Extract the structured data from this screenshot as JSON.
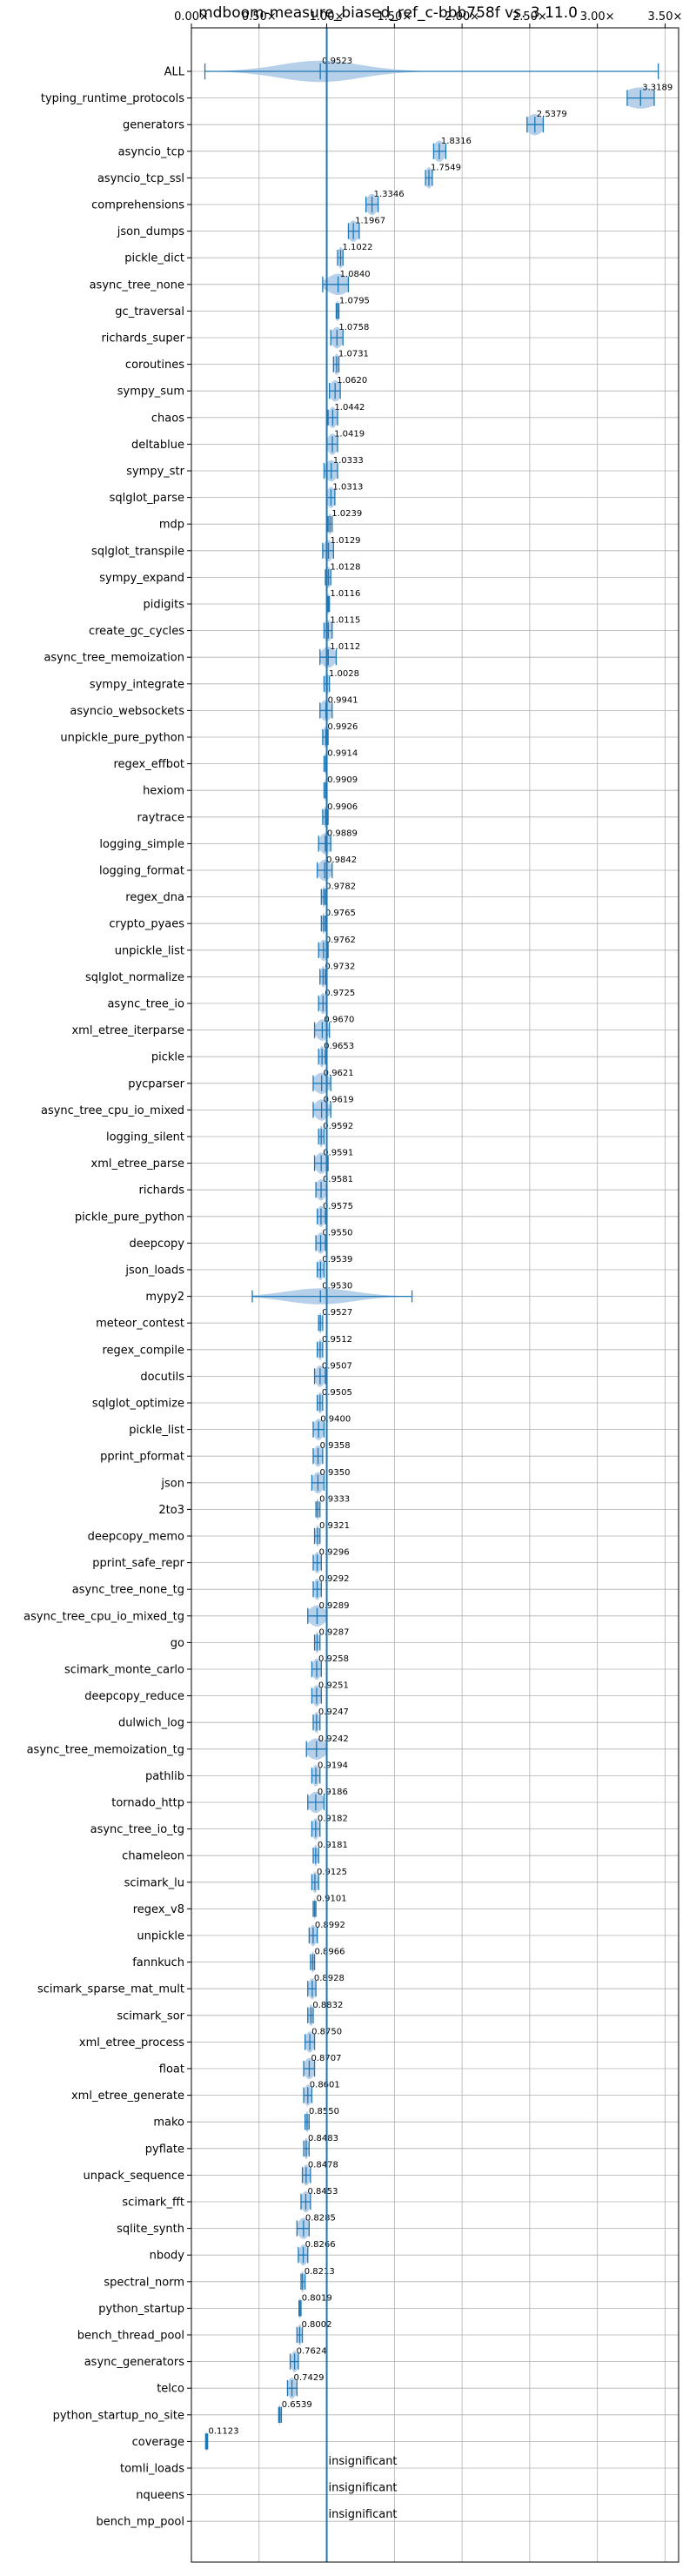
{
  "chart_data": {
    "type": "violin",
    "title": "mdboom-measure_biased_ref_c-bbb758f vs. 3.11.0",
    "xlim": [
      0,
      3.6
    ],
    "x_ticks": [
      {
        "value": 0.0,
        "label": "0.00×"
      },
      {
        "value": 0.5,
        "label": "0.50×"
      },
      {
        "value": 1.0,
        "label": "1.00×"
      },
      {
        "value": 1.5,
        "label": "1.50×"
      },
      {
        "value": 2.0,
        "label": "2.00×"
      },
      {
        "value": 2.5,
        "label": "2.50×"
      },
      {
        "value": 3.0,
        "label": "3.00×"
      },
      {
        "value": 3.5,
        "label": "3.50×"
      }
    ],
    "reference_line": 1.0,
    "grid": true,
    "accent_color": "#1f77b4",
    "fill_color": "#a9c8e6",
    "insignificant_text": "insignificant",
    "rows": [
      {
        "name": "ALL",
        "value": 0.9523,
        "label": "0.9523",
        "min": 0.1,
        "max": 3.45,
        "spread": 0.3,
        "height": 0.8
      },
      {
        "name": "typing_runtime_protocols",
        "value": 3.3189,
        "label": "3.3189",
        "min": 3.22,
        "max": 3.42,
        "spread": 0.12,
        "height": 0.8
      },
      {
        "name": "generators",
        "value": 2.5379,
        "label": "2.5379",
        "min": 2.48,
        "max": 2.6,
        "spread": 0.06,
        "height": 0.8
      },
      {
        "name": "asyncio_tcp",
        "value": 1.8316,
        "label": "1.8316",
        "min": 1.79,
        "max": 1.88,
        "spread": 0.04,
        "height": 0.8
      },
      {
        "name": "asyncio_tcp_ssl",
        "value": 1.7549,
        "label": "1.7549",
        "min": 1.73,
        "max": 1.78,
        "spread": 0.025,
        "height": 0.8
      },
      {
        "name": "comprehensions",
        "value": 1.3346,
        "label": "1.3346",
        "min": 1.29,
        "max": 1.38,
        "spread": 0.04,
        "height": 0.8
      },
      {
        "name": "json_dumps",
        "value": 1.1967,
        "label": "1.1967",
        "min": 1.16,
        "max": 1.24,
        "spread": 0.04,
        "height": 0.8
      },
      {
        "name": "pickle_dict",
        "value": 1.1022,
        "label": "1.1022",
        "min": 1.08,
        "max": 1.12,
        "spread": 0.02,
        "height": 0.8
      },
      {
        "name": "async_tree_none",
        "value": 1.084,
        "label": "1.0840",
        "min": 0.97,
        "max": 1.16,
        "spread": 0.08,
        "height": 0.8
      },
      {
        "name": "gc_traversal",
        "value": 1.0795,
        "label": "1.0795",
        "min": 1.07,
        "max": 1.09,
        "spread": 0.01,
        "height": 0.8
      },
      {
        "name": "richards_super",
        "value": 1.0758,
        "label": "1.0758",
        "min": 1.03,
        "max": 1.12,
        "spread": 0.04,
        "height": 0.8
      },
      {
        "name": "coroutines",
        "value": 1.0731,
        "label": "1.0731",
        "min": 1.05,
        "max": 1.09,
        "spread": 0.02,
        "height": 0.8
      },
      {
        "name": "sympy_sum",
        "value": 1.062,
        "label": "1.0620",
        "min": 1.02,
        "max": 1.1,
        "spread": 0.04,
        "height": 0.8
      },
      {
        "name": "chaos",
        "value": 1.0442,
        "label": "1.0442",
        "min": 1.01,
        "max": 1.08,
        "spread": 0.03,
        "height": 0.8
      },
      {
        "name": "deltablue",
        "value": 1.0419,
        "label": "1.0419",
        "min": 1.0,
        "max": 1.08,
        "spread": 0.035,
        "height": 0.8
      },
      {
        "name": "sympy_str",
        "value": 1.0333,
        "label": "1.0333",
        "min": 0.98,
        "max": 1.08,
        "spread": 0.045,
        "height": 0.8
      },
      {
        "name": "sqlglot_parse",
        "value": 1.0313,
        "label": "1.0313",
        "min": 1.0,
        "max": 1.06,
        "spread": 0.03,
        "height": 0.8
      },
      {
        "name": "mdp",
        "value": 1.0239,
        "label": "1.0239",
        "min": 1.01,
        "max": 1.04,
        "spread": 0.015,
        "height": 0.8
      },
      {
        "name": "sqlglot_transpile",
        "value": 1.0129,
        "label": "1.0129",
        "min": 0.97,
        "max": 1.05,
        "spread": 0.035,
        "height": 0.8
      },
      {
        "name": "sympy_expand",
        "value": 1.0128,
        "label": "1.0128",
        "min": 0.99,
        "max": 1.03,
        "spread": 0.02,
        "height": 0.8
      },
      {
        "name": "pidigits",
        "value": 1.0116,
        "label": "1.0116",
        "min": 1.005,
        "max": 1.02,
        "spread": 0.008,
        "height": 0.8
      },
      {
        "name": "create_gc_cycles",
        "value": 1.0115,
        "label": "1.0115",
        "min": 0.98,
        "max": 1.04,
        "spread": 0.03,
        "height": 0.8
      },
      {
        "name": "async_tree_memoization",
        "value": 1.0112,
        "label": "1.0112",
        "min": 0.95,
        "max": 1.07,
        "spread": 0.05,
        "height": 0.8
      },
      {
        "name": "sympy_integrate",
        "value": 1.0028,
        "label": "1.0028",
        "min": 0.98,
        "max": 1.02,
        "spread": 0.02,
        "height": 0.8
      },
      {
        "name": "asyncio_websockets",
        "value": 0.9941,
        "label": "0.9941",
        "min": 0.95,
        "max": 1.04,
        "spread": 0.04,
        "height": 0.8
      },
      {
        "name": "unpickle_pure_python",
        "value": 0.9926,
        "label": "0.9926",
        "min": 0.97,
        "max": 1.01,
        "spread": 0.02,
        "height": 0.8
      },
      {
        "name": "regex_effbot",
        "value": 0.9914,
        "label": "0.9914",
        "min": 0.98,
        "max": 1.0,
        "spread": 0.01,
        "height": 0.8
      },
      {
        "name": "hexiom",
        "value": 0.9909,
        "label": "0.9909",
        "min": 0.98,
        "max": 1.0,
        "spread": 0.01,
        "height": 0.8
      },
      {
        "name": "raytrace",
        "value": 0.9906,
        "label": "0.9906",
        "min": 0.97,
        "max": 1.01,
        "spread": 0.015,
        "height": 0.8
      },
      {
        "name": "logging_simple",
        "value": 0.9889,
        "label": "0.9889",
        "min": 0.94,
        "max": 1.03,
        "spread": 0.04,
        "height": 0.8
      },
      {
        "name": "logging_format",
        "value": 0.9842,
        "label": "0.9842",
        "min": 0.93,
        "max": 1.04,
        "spread": 0.045,
        "height": 0.8
      },
      {
        "name": "regex_dna",
        "value": 0.9782,
        "label": "0.9782",
        "min": 0.96,
        "max": 0.99,
        "spread": 0.012,
        "height": 0.8
      },
      {
        "name": "crypto_pyaes",
        "value": 0.9765,
        "label": "0.9765",
        "min": 0.96,
        "max": 0.99,
        "spread": 0.012,
        "height": 0.8
      },
      {
        "name": "unpickle_list",
        "value": 0.9762,
        "label": "0.9762",
        "min": 0.94,
        "max": 1.01,
        "spread": 0.03,
        "height": 0.8
      },
      {
        "name": "sqlglot_normalize",
        "value": 0.9732,
        "label": "0.9732",
        "min": 0.95,
        "max": 0.99,
        "spread": 0.018,
        "height": 0.8
      },
      {
        "name": "async_tree_io",
        "value": 0.9725,
        "label": "0.9725",
        "min": 0.94,
        "max": 1.0,
        "spread": 0.025,
        "height": 0.8
      },
      {
        "name": "xml_etree_iterparse",
        "value": 0.967,
        "label": "0.9670",
        "min": 0.91,
        "max": 1.02,
        "spread": 0.045,
        "height": 0.8
      },
      {
        "name": "pickle",
        "value": 0.9653,
        "label": "0.9653",
        "min": 0.94,
        "max": 0.99,
        "spread": 0.02,
        "height": 0.8
      },
      {
        "name": "pycparser",
        "value": 0.9621,
        "label": "0.9621",
        "min": 0.9,
        "max": 1.03,
        "spread": 0.055,
        "height": 0.8
      },
      {
        "name": "async_tree_cpu_io_mixed",
        "value": 0.9619,
        "label": "0.9619",
        "min": 0.9,
        "max": 1.03,
        "spread": 0.05,
        "height": 0.8
      },
      {
        "name": "logging_silent",
        "value": 0.9592,
        "label": "0.9592",
        "min": 0.94,
        "max": 0.98,
        "spread": 0.015,
        "height": 0.8
      },
      {
        "name": "xml_etree_parse",
        "value": 0.9591,
        "label": "0.9591",
        "min": 0.91,
        "max": 1.01,
        "spread": 0.04,
        "height": 0.8
      },
      {
        "name": "richards",
        "value": 0.9581,
        "label": "0.9581",
        "min": 0.92,
        "max": 1.0,
        "spread": 0.035,
        "height": 0.8
      },
      {
        "name": "pickle_pure_python",
        "value": 0.9575,
        "label": "0.9575",
        "min": 0.93,
        "max": 0.99,
        "spread": 0.025,
        "height": 0.8
      },
      {
        "name": "deepcopy",
        "value": 0.955,
        "label": "0.9550",
        "min": 0.92,
        "max": 0.99,
        "spread": 0.03,
        "height": 0.8
      },
      {
        "name": "json_loads",
        "value": 0.9539,
        "label": "0.9539",
        "min": 0.93,
        "max": 0.98,
        "spread": 0.02,
        "height": 0.8
      },
      {
        "name": "mypy2",
        "value": 0.953,
        "label": "0.9530",
        "min": 0.45,
        "max": 1.63,
        "spread": 0.25,
        "height": 0.6
      },
      {
        "name": "meteor_contest",
        "value": 0.9527,
        "label": "0.9527",
        "min": 0.94,
        "max": 0.97,
        "spread": 0.01,
        "height": 0.8
      },
      {
        "name": "regex_compile",
        "value": 0.9512,
        "label": "0.9512",
        "min": 0.93,
        "max": 0.97,
        "spread": 0.015,
        "height": 0.8
      },
      {
        "name": "docutils",
        "value": 0.9507,
        "label": "0.9507",
        "min": 0.91,
        "max": 0.99,
        "spread": 0.035,
        "height": 0.8
      },
      {
        "name": "sqlglot_optimize",
        "value": 0.9505,
        "label": "0.9505",
        "min": 0.93,
        "max": 0.97,
        "spread": 0.02,
        "height": 0.8
      },
      {
        "name": "pickle_list",
        "value": 0.94,
        "label": "0.9400",
        "min": 0.9,
        "max": 0.98,
        "spread": 0.035,
        "height": 0.8
      },
      {
        "name": "pprint_pformat",
        "value": 0.9358,
        "label": "0.9358",
        "min": 0.9,
        "max": 0.97,
        "spread": 0.03,
        "height": 0.8
      },
      {
        "name": "json",
        "value": 0.935,
        "label": "0.9350",
        "min": 0.89,
        "max": 0.98,
        "spread": 0.04,
        "height": 0.8
      },
      {
        "name": "2to3",
        "value": 0.9333,
        "label": "0.9333",
        "min": 0.92,
        "max": 0.95,
        "spread": 0.012,
        "height": 0.8
      },
      {
        "name": "deepcopy_memo",
        "value": 0.9321,
        "label": "0.9321",
        "min": 0.91,
        "max": 0.95,
        "spread": 0.015,
        "height": 0.8
      },
      {
        "name": "pprint_safe_repr",
        "value": 0.9296,
        "label": "0.9296",
        "min": 0.9,
        "max": 0.96,
        "spread": 0.025,
        "height": 0.8
      },
      {
        "name": "async_tree_none_tg",
        "value": 0.9292,
        "label": "0.9292",
        "min": 0.9,
        "max": 0.96,
        "spread": 0.025,
        "height": 0.8
      },
      {
        "name": "async_tree_cpu_io_mixed_tg",
        "value": 0.9289,
        "label": "0.9289",
        "min": 0.86,
        "max": 1.0,
        "spread": 0.06,
        "height": 0.8
      },
      {
        "name": "go",
        "value": 0.9287,
        "label": "0.9287",
        "min": 0.91,
        "max": 0.95,
        "spread": 0.015,
        "height": 0.8
      },
      {
        "name": "scimark_monte_carlo",
        "value": 0.9258,
        "label": "0.9258",
        "min": 0.89,
        "max": 0.96,
        "spread": 0.03,
        "height": 0.8
      },
      {
        "name": "deepcopy_reduce",
        "value": 0.9251,
        "label": "0.9251",
        "min": 0.89,
        "max": 0.96,
        "spread": 0.03,
        "height": 0.8
      },
      {
        "name": "dulwich_log",
        "value": 0.9247,
        "label": "0.9247",
        "min": 0.9,
        "max": 0.95,
        "spread": 0.02,
        "height": 0.8
      },
      {
        "name": "async_tree_memoization_tg",
        "value": 0.9242,
        "label": "0.9242",
        "min": 0.85,
        "max": 1.0,
        "spread": 0.065,
        "height": 0.8
      },
      {
        "name": "pathlib",
        "value": 0.9194,
        "label": "0.9194",
        "min": 0.89,
        "max": 0.95,
        "spread": 0.025,
        "height": 0.8
      },
      {
        "name": "tornado_http",
        "value": 0.9186,
        "label": "0.9186",
        "min": 0.86,
        "max": 0.98,
        "spread": 0.05,
        "height": 0.8
      },
      {
        "name": "async_tree_io_tg",
        "value": 0.9182,
        "label": "0.9182",
        "min": 0.89,
        "max": 0.95,
        "spread": 0.025,
        "height": 0.8
      },
      {
        "name": "chameleon",
        "value": 0.9181,
        "label": "0.9181",
        "min": 0.9,
        "max": 0.94,
        "spread": 0.015,
        "height": 0.8
      },
      {
        "name": "scimark_lu",
        "value": 0.9125,
        "label": "0.9125",
        "min": 0.89,
        "max": 0.94,
        "spread": 0.02,
        "height": 0.8
      },
      {
        "name": "regex_v8",
        "value": 0.9101,
        "label": "0.9101",
        "min": 0.9,
        "max": 0.92,
        "spread": 0.008,
        "height": 0.8
      },
      {
        "name": "unpickle",
        "value": 0.8992,
        "label": "0.8992",
        "min": 0.87,
        "max": 0.93,
        "spread": 0.025,
        "height": 0.8
      },
      {
        "name": "fannkuch",
        "value": 0.8966,
        "label": "0.8966",
        "min": 0.88,
        "max": 0.91,
        "spread": 0.012,
        "height": 0.8
      },
      {
        "name": "scimark_sparse_mat_mult",
        "value": 0.8928,
        "label": "0.8928",
        "min": 0.86,
        "max": 0.92,
        "spread": 0.025,
        "height": 0.8
      },
      {
        "name": "scimark_sor",
        "value": 0.8832,
        "label": "0.8832",
        "min": 0.86,
        "max": 0.9,
        "spread": 0.018,
        "height": 0.8
      },
      {
        "name": "xml_etree_process",
        "value": 0.875,
        "label": "0.8750",
        "min": 0.84,
        "max": 0.91,
        "spread": 0.03,
        "height": 0.8
      },
      {
        "name": "float",
        "value": 0.8707,
        "label": "0.8707",
        "min": 0.83,
        "max": 0.91,
        "spread": 0.035,
        "height": 0.8
      },
      {
        "name": "xml_etree_generate",
        "value": 0.8601,
        "label": "0.8601",
        "min": 0.83,
        "max": 0.89,
        "spread": 0.025,
        "height": 0.8
      },
      {
        "name": "mako",
        "value": 0.855,
        "label": "0.8550",
        "min": 0.84,
        "max": 0.87,
        "spread": 0.012,
        "height": 0.8
      },
      {
        "name": "pyflate",
        "value": 0.8483,
        "label": "0.8483",
        "min": 0.83,
        "max": 0.87,
        "spread": 0.015,
        "height": 0.8
      },
      {
        "name": "unpack_sequence",
        "value": 0.8478,
        "label": "0.8478",
        "min": 0.82,
        "max": 0.88,
        "spread": 0.025,
        "height": 0.8
      },
      {
        "name": "scimark_fft",
        "value": 0.8453,
        "label": "0.8453",
        "min": 0.81,
        "max": 0.88,
        "spread": 0.03,
        "height": 0.8
      },
      {
        "name": "sqlite_synth",
        "value": 0.8285,
        "label": "0.8285",
        "min": 0.78,
        "max": 0.87,
        "spread": 0.04,
        "height": 0.8
      },
      {
        "name": "nbody",
        "value": 0.8266,
        "label": "0.8266",
        "min": 0.79,
        "max": 0.86,
        "spread": 0.03,
        "height": 0.8
      },
      {
        "name": "spectral_norm",
        "value": 0.8213,
        "label": "0.8213",
        "min": 0.81,
        "max": 0.84,
        "spread": 0.012,
        "height": 0.8
      },
      {
        "name": "python_startup",
        "value": 0.8019,
        "label": "0.8019",
        "min": 0.795,
        "max": 0.81,
        "spread": 0.006,
        "height": 0.8
      },
      {
        "name": "bench_thread_pool",
        "value": 0.8002,
        "label": "0.8002",
        "min": 0.78,
        "max": 0.82,
        "spread": 0.015,
        "height": 0.8
      },
      {
        "name": "async_generators",
        "value": 0.7624,
        "label": "0.7624",
        "min": 0.73,
        "max": 0.79,
        "spread": 0.025,
        "height": 0.8
      },
      {
        "name": "telco",
        "value": 0.7429,
        "label": "0.7429",
        "min": 0.71,
        "max": 0.78,
        "spread": 0.03,
        "height": 0.8
      },
      {
        "name": "python_startup_no_site",
        "value": 0.6539,
        "label": "0.6539",
        "min": 0.645,
        "max": 0.665,
        "spread": 0.006,
        "height": 0.8
      },
      {
        "name": "coverage",
        "value": 0.1123,
        "label": "0.1123",
        "min": 0.105,
        "max": 0.12,
        "spread": 0.005,
        "height": 0.8
      },
      {
        "name": "tomli_loads",
        "value": null,
        "label": "insignificant"
      },
      {
        "name": "nqueens",
        "value": null,
        "label": "insignificant"
      },
      {
        "name": "bench_mp_pool",
        "value": null,
        "label": "insignificant"
      }
    ]
  }
}
